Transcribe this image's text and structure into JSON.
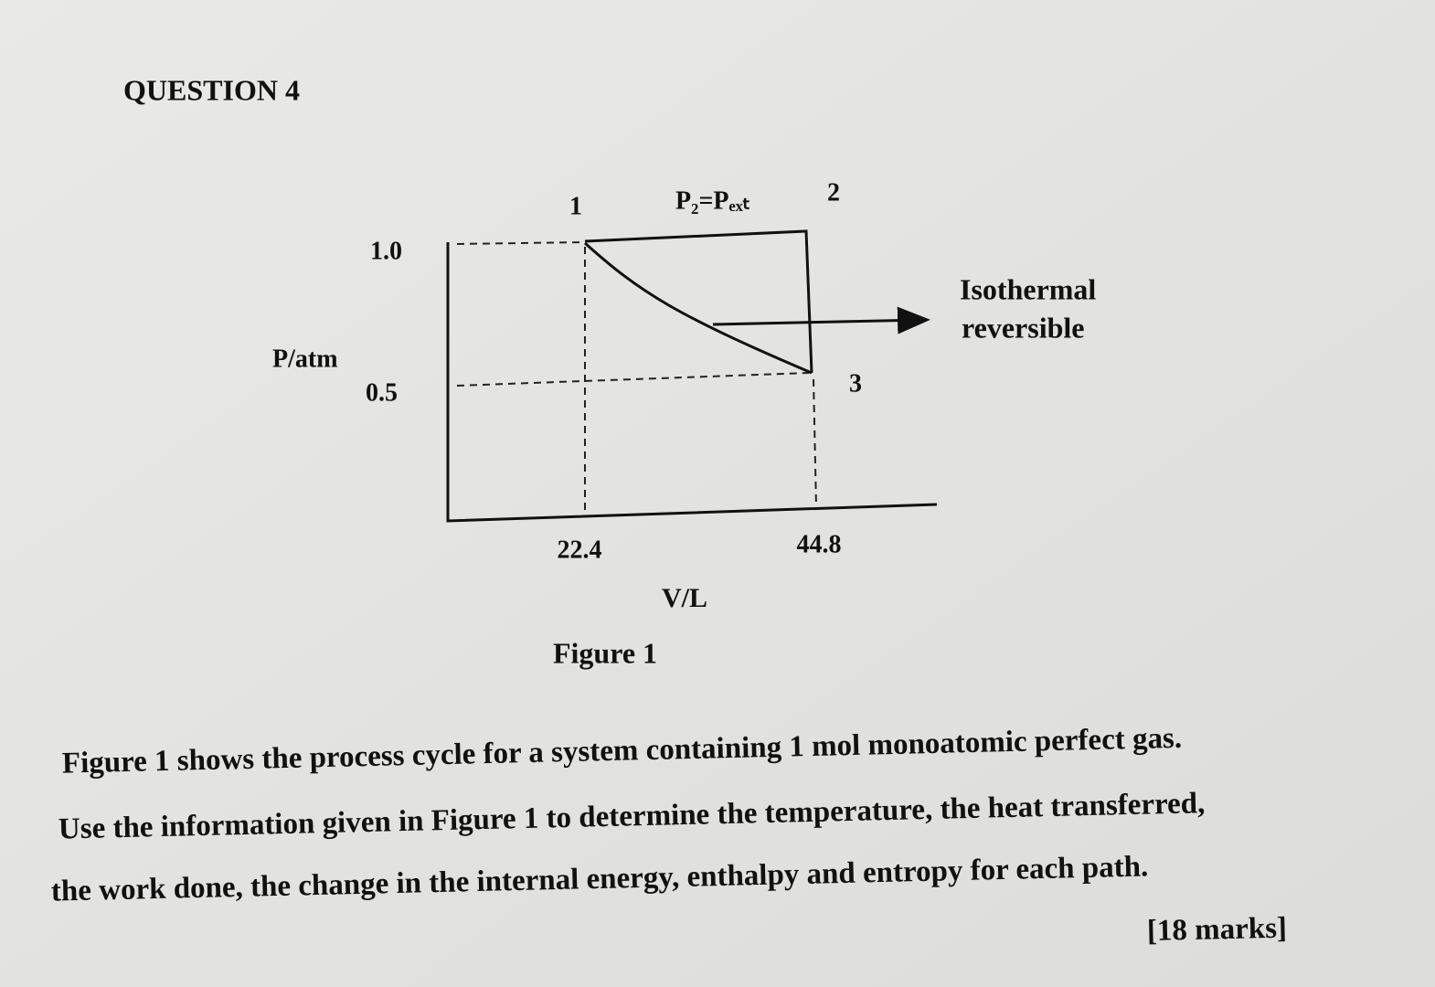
{
  "header": {
    "title": "QUESTION 4"
  },
  "figure": {
    "point_labels": [
      "1",
      "2",
      "3"
    ],
    "top_label": "P₂=Pₑₓₜ",
    "y_axis_label": "P/atm",
    "y_ticks": [
      "1.0",
      "0.5"
    ],
    "x_axis_label": "V/L",
    "x_ticks": [
      "22.4",
      "44.8"
    ],
    "annotation": [
      "Isothermal",
      "reversible"
    ],
    "caption": "Figure 1"
  },
  "body": {
    "lines": [
      "Figure 1 shows the process cycle for a system containing 1 mol monoatomic perfect gas.",
      "Use the information given in Figure 1 to determine the temperature, the heat transferred,",
      "the work done, the change in the internal energy, enthalpy and entropy for each path."
    ],
    "marks": "[18 marks]"
  }
}
